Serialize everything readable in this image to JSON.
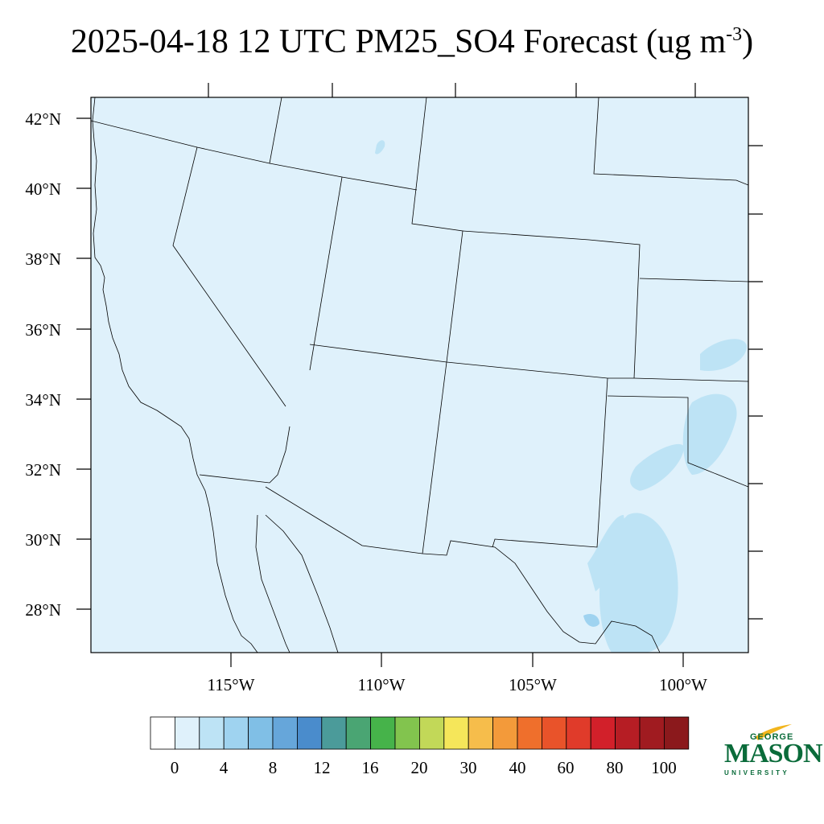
{
  "title": {
    "main": "2025-04-18 12 UTC PM25_SO4 Forecast (ug m",
    "superscript": "-3",
    "close": ")"
  },
  "map": {
    "fill_color": "#dff1fb",
    "light_contour_color": "#bde3f5",
    "mid_contour_color": "#9fd3f0",
    "lat_labels": [
      "42°N",
      "40°N",
      "38°N",
      "36°N",
      "34°N",
      "32°N",
      "30°N",
      "28°N"
    ],
    "lon_labels": [
      "115°W",
      "110°W",
      "105°W",
      "100°W"
    ]
  },
  "colorbar": {
    "colors": [
      "#ffffff",
      "#dff1fb",
      "#bde3f5",
      "#9fd3f0",
      "#80bfe6",
      "#66a6da",
      "#4a8ccc",
      "#4b9b9a",
      "#4aa573",
      "#46b34a",
      "#82c44e",
      "#c2d858",
      "#f5e65a",
      "#f6bd4b",
      "#f39a3a",
      "#ef6f2c",
      "#e9532a",
      "#e03b2a",
      "#d2202a",
      "#b61d24",
      "#a01b20",
      "#8b191c"
    ],
    "labels": [
      "0",
      "4",
      "8",
      "12",
      "16",
      "20",
      "30",
      "40",
      "60",
      "80",
      "100"
    ]
  },
  "logo": {
    "george": "GEORGE",
    "mason": "MASON",
    "university": "UNIVERSITY"
  }
}
